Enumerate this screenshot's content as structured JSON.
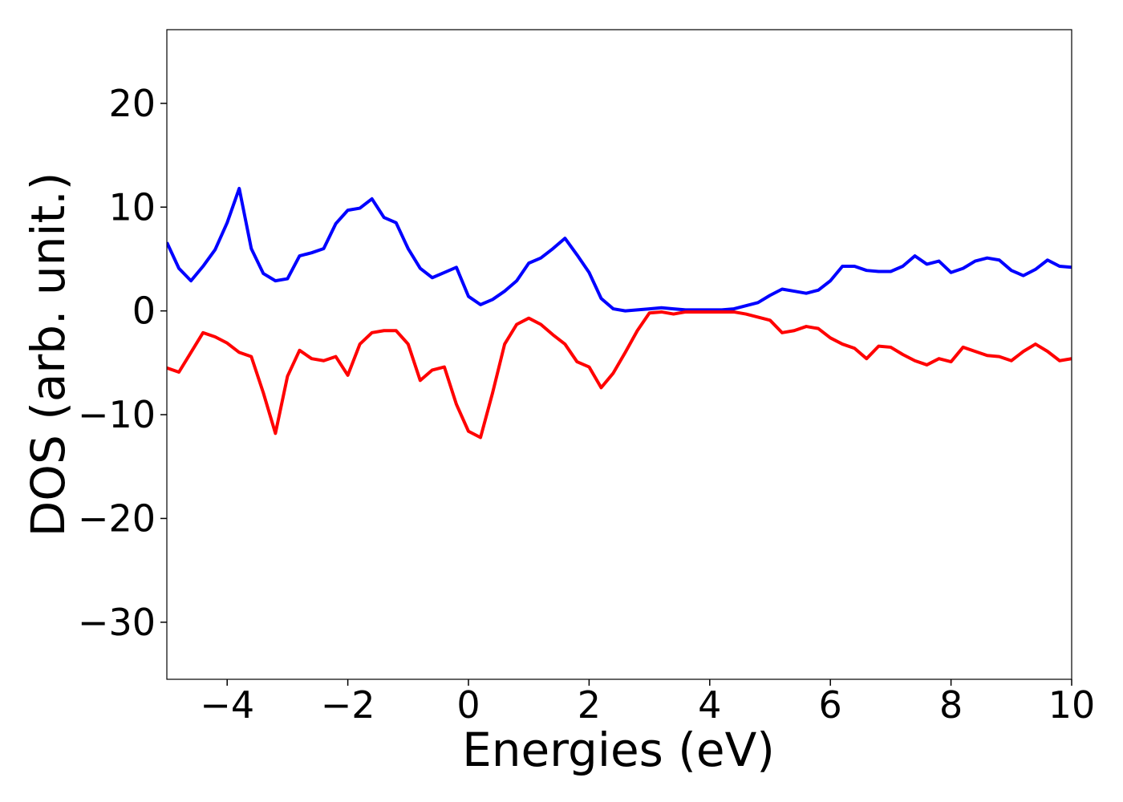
{
  "chart_data": {
    "type": "line",
    "xlabel": "Energies (eV)",
    "ylabel": "DOS (arb. unit.)",
    "x": [
      -5.0,
      -4.8,
      -4.6,
      -4.4,
      -4.2,
      -4.0,
      -3.8,
      -3.6,
      -3.4,
      -3.2,
      -3.0,
      -2.8,
      -2.6,
      -2.4,
      -2.2,
      -2.0,
      -1.8,
      -1.6,
      -1.4,
      -1.2,
      -1.0,
      -0.8,
      -0.6,
      -0.4,
      -0.2,
      0.0,
      0.2,
      0.4,
      0.6,
      0.8,
      1.0,
      1.2,
      1.4,
      1.6,
      1.8,
      2.0,
      2.2,
      2.4,
      2.6,
      2.8,
      3.0,
      3.2,
      3.4,
      3.6,
      3.8,
      4.0,
      4.2,
      4.4,
      4.6,
      4.8,
      5.0,
      5.2,
      5.4,
      5.6,
      5.8,
      6.0,
      6.2,
      6.4,
      6.6,
      6.8,
      7.0,
      7.2,
      7.4,
      7.6,
      7.8,
      8.0,
      8.2,
      8.4,
      8.6,
      8.8,
      9.0,
      9.2,
      9.4,
      9.6,
      9.8,
      10.0
    ],
    "series": [
      {
        "color": "#0000ff",
        "values": [
          6.6,
          4.1,
          2.9,
          4.3,
          5.9,
          8.5,
          11.8,
          6.0,
          3.6,
          2.9,
          3.1,
          5.3,
          5.6,
          6.0,
          8.4,
          9.7,
          9.9,
          10.8,
          9.0,
          8.5,
          6.0,
          4.1,
          3.2,
          3.7,
          4.2,
          1.4,
          0.6,
          1.1,
          1.9,
          2.9,
          4.6,
          5.1,
          6.0,
          7.0,
          5.4,
          3.7,
          1.2,
          0.2,
          0.0,
          0.1,
          0.2,
          0.3,
          0.2,
          0.1,
          0.1,
          0.1,
          0.1,
          0.2,
          0.5,
          0.8,
          1.5,
          2.1,
          1.9,
          1.7,
          2.0,
          2.9,
          4.3,
          4.3,
          3.9,
          3.8,
          3.8,
          4.3,
          5.3,
          4.5,
          4.8,
          3.7,
          4.1,
          4.8,
          5.1,
          4.9,
          3.9,
          3.4,
          4.0,
          4.9,
          4.3,
          4.2
        ]
      },
      {
        "color": "#ff0000",
        "values": [
          -5.5,
          -5.9,
          -4.0,
          -2.1,
          -2.5,
          -3.1,
          -4.0,
          -4.4,
          -7.9,
          -11.8,
          -6.3,
          -3.8,
          -4.6,
          -4.8,
          -4.4,
          -6.2,
          -3.2,
          -2.1,
          -1.9,
          -1.9,
          -3.2,
          -6.7,
          -5.7,
          -5.4,
          -9.0,
          -11.6,
          -12.2,
          -7.9,
          -3.2,
          -1.3,
          -0.7,
          -1.3,
          -2.3,
          -3.2,
          -4.9,
          -5.4,
          -7.4,
          -6.0,
          -4.0,
          -1.9,
          -0.2,
          -0.1,
          -0.3,
          -0.1,
          -0.1,
          -0.1,
          -0.1,
          -0.1,
          -0.3,
          -0.6,
          -0.9,
          -2.1,
          -1.9,
          -1.5,
          -1.7,
          -2.6,
          -3.2,
          -3.6,
          -4.6,
          -3.4,
          -3.5,
          -4.2,
          -4.8,
          -5.2,
          -4.6,
          -4.9,
          -3.5,
          -3.9,
          -4.3,
          -4.4,
          -4.8,
          -3.9,
          -3.2,
          -3.9,
          -4.8,
          -4.6
        ]
      }
    ],
    "xlim": [
      -5,
      10
    ],
    "xticks": [
      {
        "value": -4,
        "label": "−4"
      },
      {
        "value": -2,
        "label": "−2"
      },
      0,
      2,
      4,
      6,
      8,
      10
    ],
    "ylim": [
      -35.5,
      27.1
    ],
    "yticks": [
      {
        "value": -30,
        "label": "−30"
      },
      {
        "value": -20,
        "label": "−20"
      },
      {
        "value": -10,
        "label": "−10"
      },
      0,
      10,
      20
    ],
    "grid": false
  }
}
